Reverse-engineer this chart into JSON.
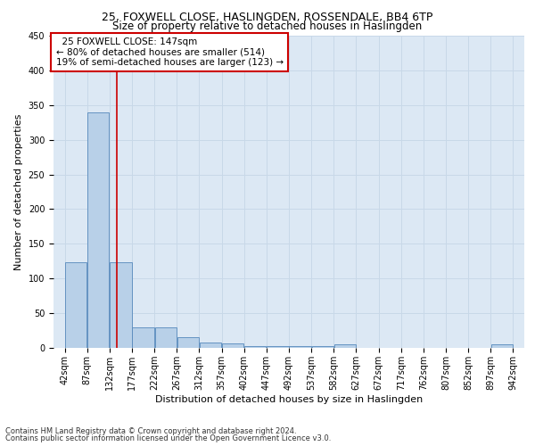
{
  "title1": "25, FOXWELL CLOSE, HASLINGDEN, ROSSENDALE, BB4 6TP",
  "title2": "Size of property relative to detached houses in Haslingden",
  "xlabel": "Distribution of detached houses by size in Haslingden",
  "ylabel": "Number of detached properties",
  "footer1": "Contains HM Land Registry data © Crown copyright and database right 2024.",
  "footer2": "Contains public sector information licensed under the Open Government Licence v3.0.",
  "annotation_line1": "  25 FOXWELL CLOSE: 147sqm  ",
  "annotation_line2": "← 80% of detached houses are smaller (514)",
  "annotation_line3": "19% of semi-detached houses are larger (123) →",
  "bar_edges": [
    42,
    87,
    132,
    177,
    222,
    267,
    312,
    357,
    402,
    447,
    492,
    537,
    582,
    627,
    672,
    717,
    762,
    807,
    852,
    897,
    942
  ],
  "bar_heights": [
    123,
    340,
    123,
    30,
    30,
    15,
    8,
    6,
    3,
    3,
    3,
    3,
    5,
    0,
    0,
    0,
    0,
    0,
    0,
    5
  ],
  "bar_color": "#b8d0e8",
  "bar_edge_color": "#5588bb",
  "grid_color": "#c8d8e8",
  "bg_color": "#dce8f4",
  "property_size": 147,
  "redline_color": "#cc0000",
  "ylim": [
    0,
    450
  ],
  "yticks": [
    0,
    50,
    100,
    150,
    200,
    250,
    300,
    350,
    400,
    450
  ],
  "annotation_box_color": "#cc0000",
  "title1_fontsize": 9,
  "title2_fontsize": 8.5,
  "xlabel_fontsize": 8,
  "ylabel_fontsize": 8,
  "tick_fontsize": 7,
  "annotation_fontsize": 7.5,
  "footer_fontsize": 6
}
